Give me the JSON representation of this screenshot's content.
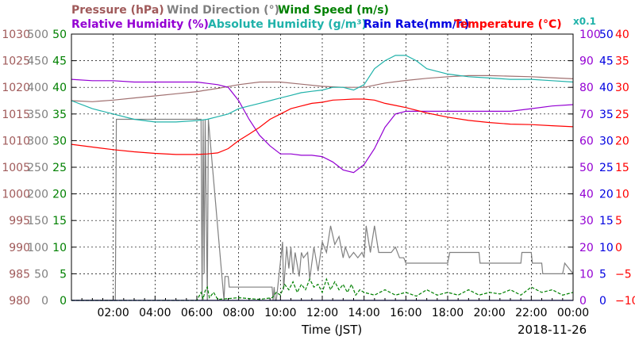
{
  "chart_data": {
    "type": "line",
    "legend": {
      "pressure": "Pressure (hPa)",
      "wind_direction": "Wind Direction (°)",
      "wind_speed": "Wind Speed (m/s)",
      "relative_humidity": "Relative Humidity (%)",
      "absolute_humidity": "Absolute Humidity (g/m³)",
      "rain_rate": "Rain Rate(mm/h)",
      "temperature": "Temperature (°C)",
      "abs_humidity_scale_note": "x0.1",
      "placement": "top"
    },
    "xlabel": "Time (JST)",
    "date": "2018-11-26",
    "x_ticks": [
      "02:00",
      "04:00",
      "06:00",
      "08:00",
      "10:00",
      "12:00",
      "14:00",
      "16:00",
      "18:00",
      "20:00",
      "22:00",
      "00:00"
    ],
    "xlim_hours": [
      0,
      24
    ],
    "grid": true,
    "axes": {
      "pressure": {
        "ticks": [
          "1030",
          "1025",
          "1020",
          "1015",
          "1010",
          "1005",
          "1000",
          "995",
          "990",
          "985",
          "980"
        ],
        "ylim": [
          980,
          1030
        ],
        "color": "#a05a5a"
      },
      "wind_direction": {
        "ticks": [
          "500",
          "450",
          "400",
          "350",
          "300",
          "250",
          "200",
          "150",
          "100",
          "50",
          "0"
        ],
        "ylim": [
          0,
          500
        ],
        "color": "#808080"
      },
      "wind_speed": {
        "ticks": [
          "50",
          "45",
          "40",
          "35",
          "30",
          "25",
          "20",
          "15",
          "10",
          "5",
          "0"
        ],
        "ylim": [
          0,
          50
        ],
        "color": "#008000"
      },
      "relative_humidity": {
        "ticks": [
          "100",
          "90",
          "80",
          "70",
          "60",
          "50",
          "40",
          "30",
          "20",
          "10",
          "0"
        ],
        "ylim": [
          0,
          100
        ],
        "color": "#9400d3"
      },
      "rain_rate": {
        "ticks": [
          "50",
          "45",
          "40",
          "35",
          "30",
          "25",
          "20",
          "15",
          "10",
          "5",
          "0"
        ],
        "ylim": [
          0,
          50
        ],
        "color": "#0000e0"
      },
      "temperature": {
        "ticks": [
          "40",
          "35",
          "30",
          "25",
          "20",
          "15",
          "10",
          "5",
          "0",
          "−5",
          "−10"
        ],
        "ylim": [
          -10,
          40
        ],
        "color": "#ff0000"
      }
    },
    "series": [
      {
        "name": "Pressure (hPa)",
        "axis": "pressure",
        "color": "#a07070",
        "x": [
          0,
          1,
          2,
          3,
          4,
          5,
          6,
          7,
          8,
          9,
          10,
          11,
          12,
          13,
          14,
          15,
          16,
          17,
          18,
          19,
          20,
          21,
          22,
          23,
          24
        ],
        "y": [
          1017.5,
          1017.3,
          1017.6,
          1018,
          1018.4,
          1018.8,
          1019.2,
          1019.8,
          1020.5,
          1021,
          1021,
          1020.6,
          1020.2,
          1020,
          1020,
          1020.8,
          1021.3,
          1021.7,
          1022,
          1022.2,
          1022.2,
          1022.1,
          1022,
          1021.8,
          1021.6
        ]
      },
      {
        "name": "Wind Direction (°)",
        "axis": "wind_direction",
        "color": "#808080",
        "x": [
          0,
          2.1,
          2.15,
          2.2,
          4,
          6.2,
          6.25,
          6.3,
          6.35,
          6.4,
          6.5,
          6.55,
          7.3,
          7.35,
          7.5,
          7.55,
          9.6,
          9.65,
          9.7,
          9.75,
          9.8,
          10.1,
          10.15,
          10.3,
          10.4,
          10.5,
          10.6,
          10.7,
          10.9,
          11,
          11.1,
          11.3,
          11.4,
          11.6,
          11.8,
          12,
          12.2,
          12.4,
          12.6,
          12.8,
          13,
          13.1,
          13.3,
          13.5,
          13.7,
          13.9,
          14,
          14.1,
          14.3,
          14.5,
          14.7,
          14.9,
          15.1,
          15.3,
          15.5,
          15.7,
          15.9,
          16,
          16.3,
          17,
          18,
          18.1,
          19,
          19.5,
          19.55,
          20,
          21.5,
          21.55,
          22,
          22.05,
          22.5,
          22.55,
          23.5,
          23.6,
          24
        ],
        "y": [
          0,
          0,
          340,
          340,
          340,
          340,
          0,
          340,
          50,
          340,
          0,
          340,
          0,
          45,
          45,
          25,
          25,
          0,
          25,
          0,
          0,
          110,
          20,
          100,
          60,
          100,
          50,
          90,
          45,
          90,
          80,
          90,
          40,
          100,
          55,
          110,
          90,
          140,
          105,
          120,
          80,
          100,
          80,
          90,
          80,
          90,
          80,
          140,
          90,
          140,
          90,
          90,
          90,
          90,
          100,
          80,
          80,
          70,
          70,
          70,
          70,
          90,
          90,
          90,
          70,
          70,
          70,
          90,
          90,
          70,
          70,
          50,
          50,
          70,
          50
        ]
      },
      {
        "name": "Wind Speed (m/s)",
        "axis": "wind_speed",
        "color": "#008000",
        "x": [
          0,
          1,
          2,
          3,
          4,
          5,
          6,
          6.2,
          6.3,
          6.4,
          6.5,
          6.6,
          6.8,
          7,
          8,
          9,
          9.6,
          9.8,
          10,
          10.2,
          10.4,
          10.6,
          10.8,
          11,
          11.2,
          11.4,
          11.6,
          11.8,
          12,
          12.2,
          12.4,
          12.6,
          12.8,
          13,
          13.2,
          13.4,
          13.6,
          13.8,
          14,
          14.5,
          15,
          15.5,
          16,
          16.5,
          17,
          17.5,
          18,
          18.5,
          19,
          19.5,
          20,
          20.5,
          21,
          21.5,
          22,
          22.5,
          23,
          23.5,
          24
        ],
        "y": [
          0,
          0,
          0,
          0,
          0,
          0,
          0,
          1.5,
          0.3,
          1.8,
          2.5,
          0.5,
          1.5,
          0.2,
          0.5,
          0.2,
          0.5,
          1.5,
          1,
          3,
          2,
          3.5,
          1.5,
          3,
          2,
          4,
          2.5,
          3,
          1.5,
          4,
          2,
          3.5,
          2,
          3,
          1.5,
          3,
          1,
          2,
          1.5,
          1,
          2,
          1,
          1.5,
          0.8,
          2,
          1,
          1.5,
          1,
          2,
          1,
          1.5,
          1.2,
          2,
          1,
          2.5,
          1.5,
          2,
          1,
          1.5
        ]
      },
      {
        "name": "Relative Humidity (%)",
        "axis": "relative_humidity",
        "color": "#9400d3",
        "x": [
          0,
          1,
          2,
          3,
          4,
          5,
          6,
          6.5,
          7,
          7.5,
          8,
          8.5,
          9,
          9.5,
          10,
          10.5,
          11,
          11.5,
          12,
          12.5,
          13,
          13.5,
          14,
          14.5,
          15,
          15.5,
          16,
          17,
          18,
          19,
          20,
          21,
          22,
          23,
          24
        ],
        "y": [
          83,
          82.5,
          82.5,
          82,
          82,
          82,
          82,
          81.5,
          81,
          80,
          75,
          68,
          62,
          58,
          55,
          55,
          54.5,
          54.5,
          54,
          52,
          49,
          48,
          51,
          57,
          65,
          70,
          71,
          71,
          71,
          71,
          71,
          71,
          72,
          73,
          73.5
        ]
      },
      {
        "name": "Absolute Humidity (g/m³)",
        "axis": "relative_humidity",
        "scale": 0.1,
        "color": "#20b2aa",
        "x": [
          0,
          1,
          2,
          3,
          4,
          5,
          6,
          6.5,
          7,
          7.5,
          8,
          8.5,
          9,
          9.5,
          10,
          10.5,
          11,
          11.5,
          12,
          12.5,
          13,
          13.5,
          14,
          14.5,
          15,
          15.5,
          16,
          16.5,
          17,
          18,
          19,
          20,
          21,
          22,
          23,
          24
        ],
        "y": [
          75,
          72,
          70,
          68,
          67,
          67,
          67.5,
          68,
          69,
          70,
          72,
          73,
          74,
          75,
          76,
          77,
          78,
          78.5,
          79,
          80,
          80,
          79,
          81,
          87,
          90,
          92,
          92,
          90,
          87,
          85,
          84,
          83.5,
          83,
          83,
          82.5,
          82
        ]
      },
      {
        "name": "Rain Rate(mm/h)",
        "axis": "rain_rate",
        "color": "#0000e0",
        "x": [
          0,
          24
        ],
        "y": [
          0,
          0
        ]
      },
      {
        "name": "Temperature (°C)",
        "axis": "temperature",
        "color": "#ff0000",
        "x": [
          0,
          1,
          2,
          3,
          4,
          5,
          6,
          6.5,
          7,
          7.5,
          8,
          8.5,
          9,
          9.5,
          10,
          10.5,
          11,
          11.5,
          12,
          12.5,
          13,
          13.5,
          14,
          14.5,
          15,
          15.5,
          16,
          17,
          18,
          19,
          20,
          21,
          22,
          23,
          24
        ],
        "y": [
          19.3,
          18.8,
          18.3,
          17.9,
          17.6,
          17.4,
          17.4,
          17.5,
          17.7,
          18.5,
          20,
          21.2,
          22.5,
          24,
          25,
          26,
          26.5,
          27,
          27.2,
          27.6,
          27.7,
          27.8,
          27.8,
          27.6,
          27,
          26.6,
          26.2,
          25.2,
          24.4,
          23.8,
          23.4,
          23.1,
          23,
          22.8,
          22.6
        ]
      }
    ]
  }
}
